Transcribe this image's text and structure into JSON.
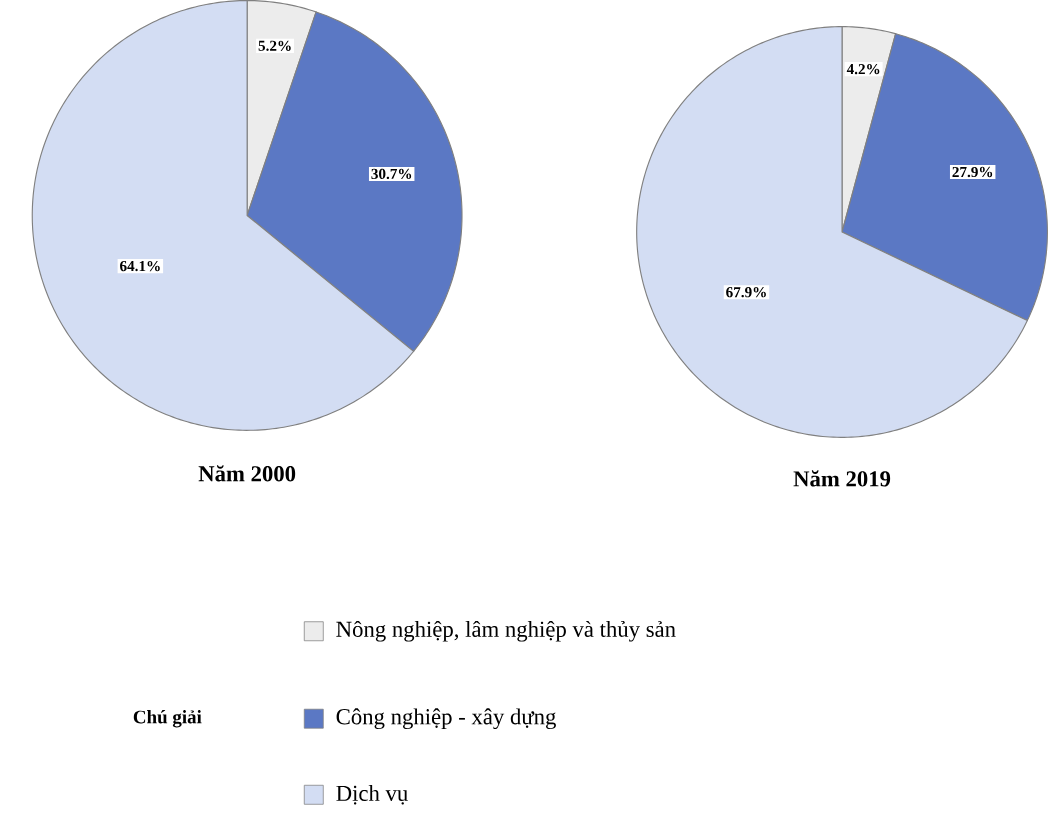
{
  "chart_data": [
    {
      "type": "pie",
      "title": "Năm 2000",
      "legend_title": "Chú giải",
      "legend": "bottom",
      "categories": [
        "Nông nghiệp, lâm nghiệp và thủy sản",
        "Công nghiệp - xây dựng",
        "Dịch vụ"
      ],
      "values": [
        5.2,
        30.7,
        64.1
      ],
      "value_labels": [
        "5.2%",
        "30.7%",
        "64.1%"
      ],
      "colors": [
        "#ececec",
        "#5b78c4",
        "#d3ddf3"
      ]
    },
    {
      "type": "pie",
      "title": "Năm 2019",
      "categories": [
        null,
        null,
        null
      ],
      "values": [
        4.2,
        27.9,
        67.9
      ],
      "value_labels": [
        "4.2%",
        "27.9%",
        "67.9%"
      ],
      "colors": [
        "#ececec",
        "#5b78c4",
        "#d3ddf3"
      ]
    }
  ]
}
